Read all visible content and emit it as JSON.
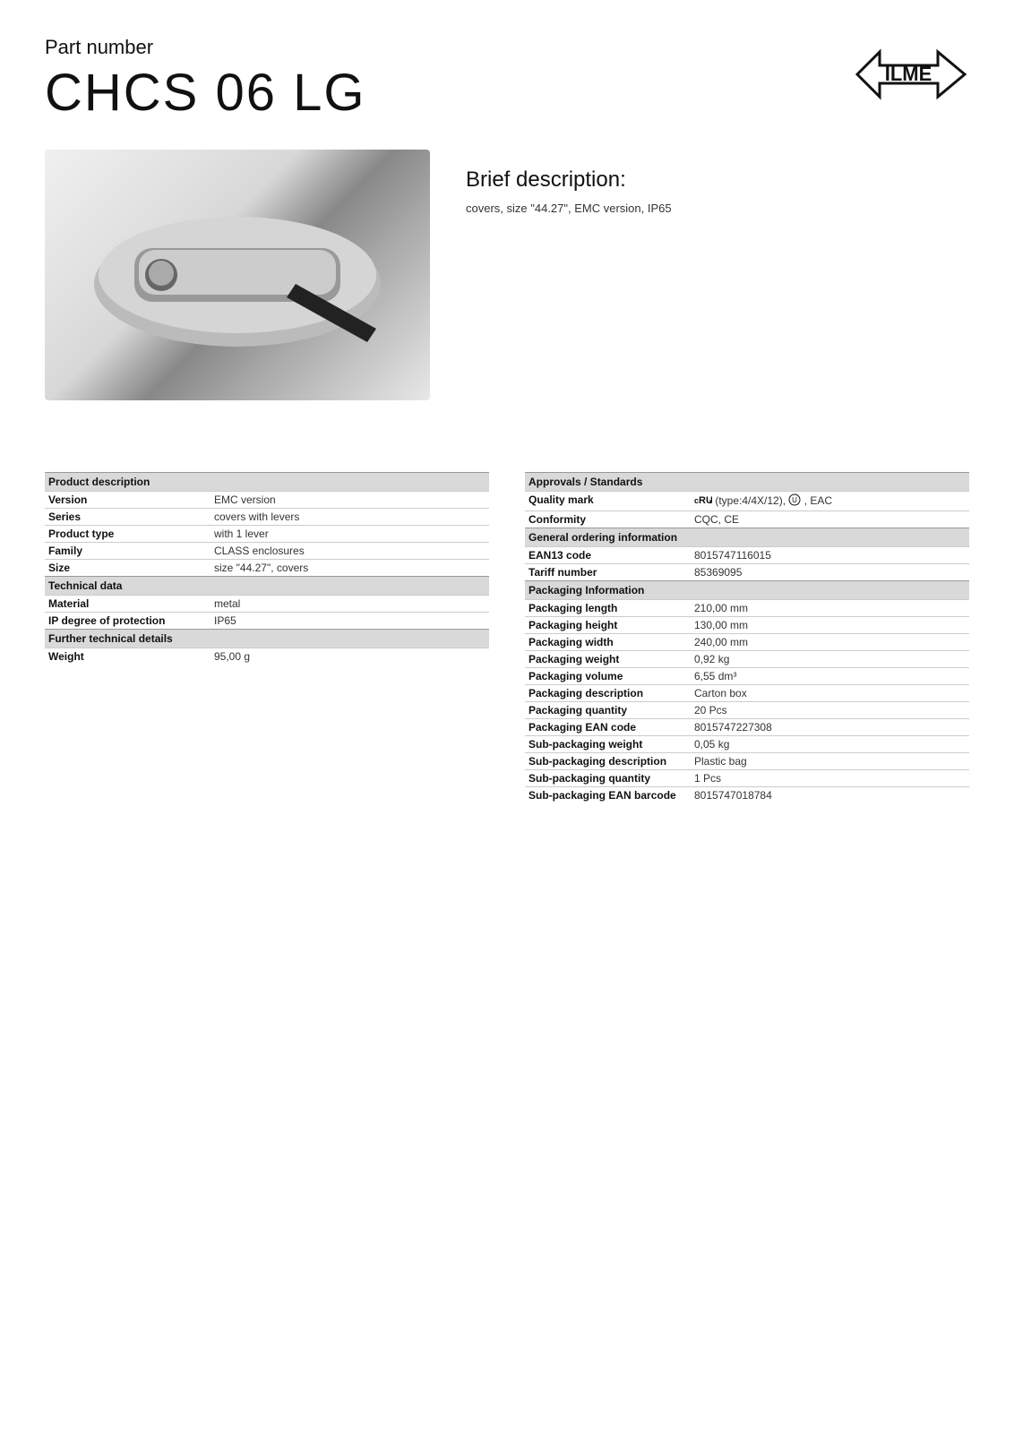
{
  "header": {
    "part_label": "Part number",
    "part_number": "CHCS 06 LG"
  },
  "brief": {
    "title": "Brief description:",
    "text": "covers, size \"44.27\", EMC version, IP65"
  },
  "left_col": {
    "sections": [
      {
        "header": "Product description",
        "rows": [
          {
            "label": "Version",
            "value": "EMC version"
          },
          {
            "label": "Series",
            "value": "covers with levers"
          },
          {
            "label": "Product type",
            "value": "with 1 lever"
          },
          {
            "label": "Family",
            "value": "CLASS enclosures"
          },
          {
            "label": "Size",
            "value": "size \"44.27\", covers"
          }
        ]
      },
      {
        "header": "Technical data",
        "rows": [
          {
            "label": "Material",
            "value": "metal"
          },
          {
            "label": "IP degree of protection",
            "value": "IP65"
          }
        ]
      },
      {
        "header": "Further technical details",
        "rows": [
          {
            "label": "Weight",
            "value": "95,00 g"
          }
        ]
      }
    ]
  },
  "right_col": {
    "sections": [
      {
        "header": "Approvals / Standards",
        "rows": [
          {
            "label": "Quality mark",
            "value": "cert"
          },
          {
            "label": "Conformity",
            "value": "CQC, CE"
          }
        ]
      },
      {
        "header": "General ordering information",
        "rows": [
          {
            "label": "EAN13 code",
            "value": "8015747116015"
          },
          {
            "label": "Tariff number",
            "value": "85369095"
          }
        ]
      },
      {
        "header": "Packaging Information",
        "rows": [
          {
            "label": "Packaging length",
            "value": "210,00 mm"
          },
          {
            "label": "Packaging height",
            "value": "130,00 mm"
          },
          {
            "label": "Packaging width",
            "value": "240,00 mm"
          },
          {
            "label": "Packaging weight",
            "value": "0,92 kg"
          },
          {
            "label": "Packaging volume",
            "value": "6,55 dm³"
          },
          {
            "label": "Packaging description",
            "value": "Carton box"
          },
          {
            "label": "Packaging quantity",
            "value": "20 Pcs"
          },
          {
            "label": "Packaging EAN code",
            "value": "8015747227308"
          },
          {
            "label": "Sub-packaging weight",
            "value": "0,05 kg"
          },
          {
            "label": "Sub-packaging description",
            "value": "Plastic bag"
          },
          {
            "label": "Sub-packaging quantity",
            "value": "1 Pcs"
          },
          {
            "label": "Sub-packaging EAN barcode",
            "value": "8015747018784"
          }
        ]
      }
    ]
  },
  "quality_mark": {
    "type_text": " (type:4/4X/12), ",
    "eac_text": " , EAC"
  },
  "colors": {
    "section_bg": "#d9d9d9",
    "border": "#cccccc",
    "text": "#111111",
    "value_text": "#333333"
  }
}
